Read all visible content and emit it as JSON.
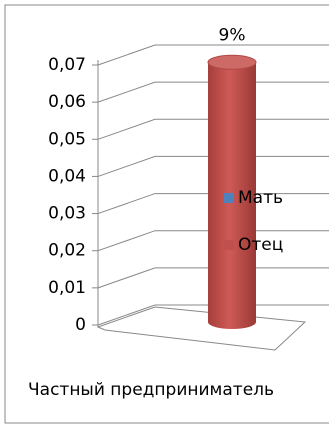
{
  "chart_data": {
    "type": "bar3d-cylinder",
    "categories": [
      "Частный предприниматель"
    ],
    "series": [
      {
        "name": "Мать",
        "color": "#4f81bd",
        "values": [
          0
        ]
      },
      {
        "name": "Отец",
        "color": "#c0504d",
        "values": [
          0.09
        ],
        "value_labels": [
          "9%"
        ]
      }
    ],
    "ylim": [
      0,
      0.07
    ],
    "yticks": [
      0,
      {
        "value": 0.01,
        "label": "0,01"
      },
      {
        "value": 0.02,
        "label": "0,02"
      },
      {
        "value": 0.03,
        "label": "0,03"
      },
      {
        "value": 0.04,
        "label": "0,04"
      },
      {
        "value": 0.05,
        "label": "0,05"
      },
      {
        "value": 0.06,
        "label": "0,06"
      },
      {
        "value": 0.07,
        "label": "0,07"
      }
    ],
    "grid": true,
    "legend": "right"
  }
}
